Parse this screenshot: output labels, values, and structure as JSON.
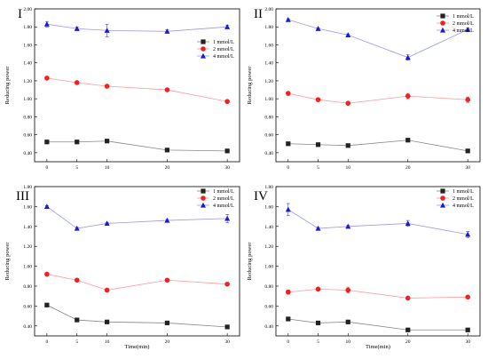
{
  "chart_data": [
    {
      "type": "line",
      "panel_label": "I",
      "xlabel": "",
      "ylabel": "Reducing power",
      "x": [
        0,
        5,
        10,
        20,
        30
      ],
      "xticks": [
        "0",
        "5",
        "10",
        "20",
        "30"
      ],
      "ylim": [
        0.3,
        2.0
      ],
      "yticks": [
        "0.40",
        "0.60",
        "0.80",
        "1.00",
        "1.20",
        "1.40",
        "1.60",
        "1.80",
        "2.00"
      ],
      "legend_position": "right",
      "series": [
        {
          "name": "1 mmol/L",
          "values": [
            0.52,
            0.52,
            0.53,
            0.43,
            0.42
          ],
          "errors": [
            0.01,
            0.01,
            0.01,
            0.02,
            0.01
          ]
        },
        {
          "name": "2 mmol/L",
          "values": [
            1.23,
            1.18,
            1.14,
            1.1,
            0.97
          ],
          "errors": [
            0.01,
            0.01,
            0.01,
            0.01,
            0.01
          ]
        },
        {
          "name": "4 mmol/L",
          "values": [
            1.83,
            1.78,
            1.76,
            1.75,
            1.8
          ],
          "errors": [
            0.03,
            0.02,
            0.07,
            0.02,
            0.02
          ]
        }
      ]
    },
    {
      "type": "line",
      "panel_label": "II",
      "xlabel": "",
      "ylabel": "Reducing power",
      "x": [
        0,
        5,
        10,
        20,
        30
      ],
      "xticks": [
        "0",
        "5",
        "10",
        "20",
        "30"
      ],
      "ylim": [
        0.3,
        2.0
      ],
      "yticks": [
        "0.40",
        "0.60",
        "0.80",
        "1.00",
        "1.20",
        "1.40",
        "1.60",
        "1.80",
        "2.00"
      ],
      "legend_position": "top-right",
      "series": [
        {
          "name": "1 mmol/L",
          "values": [
            0.5,
            0.49,
            0.48,
            0.54,
            0.42
          ],
          "errors": [
            0.01,
            0.01,
            0.01,
            0.02,
            0.01
          ]
        },
        {
          "name": "2 mmol/L",
          "values": [
            1.06,
            0.99,
            0.95,
            1.03,
            0.99
          ],
          "errors": [
            0.01,
            0.01,
            0.01,
            0.03,
            0.03
          ]
        },
        {
          "name": "4 mmol/L",
          "values": [
            1.88,
            1.78,
            1.71,
            1.46,
            1.77
          ],
          "errors": [
            0.01,
            0.01,
            0.01,
            0.03,
            0.02
          ]
        }
      ]
    },
    {
      "type": "line",
      "panel_label": "III",
      "xlabel": "Time(min)",
      "ylabel": "Reducing power",
      "x": [
        0,
        5,
        10,
        20,
        30
      ],
      "xticks": [
        "0",
        "5",
        "10",
        "20",
        "30"
      ],
      "ylim": [
        0.3,
        1.8
      ],
      "yticks": [
        "0.40",
        "0.60",
        "0.80",
        "1.00",
        "1.20",
        "1.40",
        "1.60",
        "1.80"
      ],
      "legend_position": "top-right",
      "series": [
        {
          "name": "1 mmol/L",
          "values": [
            0.61,
            0.46,
            0.44,
            0.43,
            0.39
          ],
          "errors": [
            0.01,
            0.01,
            0.01,
            0.01,
            0.01
          ]
        },
        {
          "name": "2 mmol/L",
          "values": [
            0.92,
            0.86,
            0.76,
            0.86,
            0.82
          ],
          "errors": [
            0.01,
            0.01,
            0.01,
            0.01,
            0.01
          ]
        },
        {
          "name": "4 mmol/L",
          "values": [
            1.6,
            1.38,
            1.43,
            1.46,
            1.48
          ],
          "errors": [
            0.01,
            0.01,
            0.01,
            0.01,
            0.04
          ]
        }
      ]
    },
    {
      "type": "line",
      "panel_label": "IV",
      "xlabel": "Time(min)",
      "ylabel": "Reducing power",
      "x": [
        0,
        5,
        10,
        20,
        30
      ],
      "xticks": [
        "0",
        "5",
        "10",
        "20",
        "30"
      ],
      "ylim": [
        0.3,
        1.8
      ],
      "yticks": [
        "0.40",
        "0.60",
        "0.80",
        "1.00",
        "1.20",
        "1.40",
        "1.60",
        "1.80"
      ],
      "legend_position": "top-right",
      "series": [
        {
          "name": "1 mmol/L",
          "values": [
            0.47,
            0.43,
            0.44,
            0.36,
            0.36
          ],
          "errors": [
            0.01,
            0.01,
            0.01,
            0.01,
            0.01
          ]
        },
        {
          "name": "2 mmol/L",
          "values": [
            0.74,
            0.77,
            0.76,
            0.68,
            0.69
          ],
          "errors": [
            0.02,
            0.01,
            0.03,
            0.01,
            0.01
          ]
        },
        {
          "name": "4 mmol/L",
          "values": [
            1.57,
            1.38,
            1.4,
            1.43,
            1.32
          ],
          "errors": [
            0.06,
            0.01,
            0.01,
            0.03,
            0.03
          ]
        }
      ]
    }
  ],
  "colors": {
    "series": [
      "#222222",
      "#ee2222",
      "#1a1ad8"
    ],
    "lines": [
      "#888888",
      "#ff9a9a",
      "#9a9ae8"
    ]
  }
}
